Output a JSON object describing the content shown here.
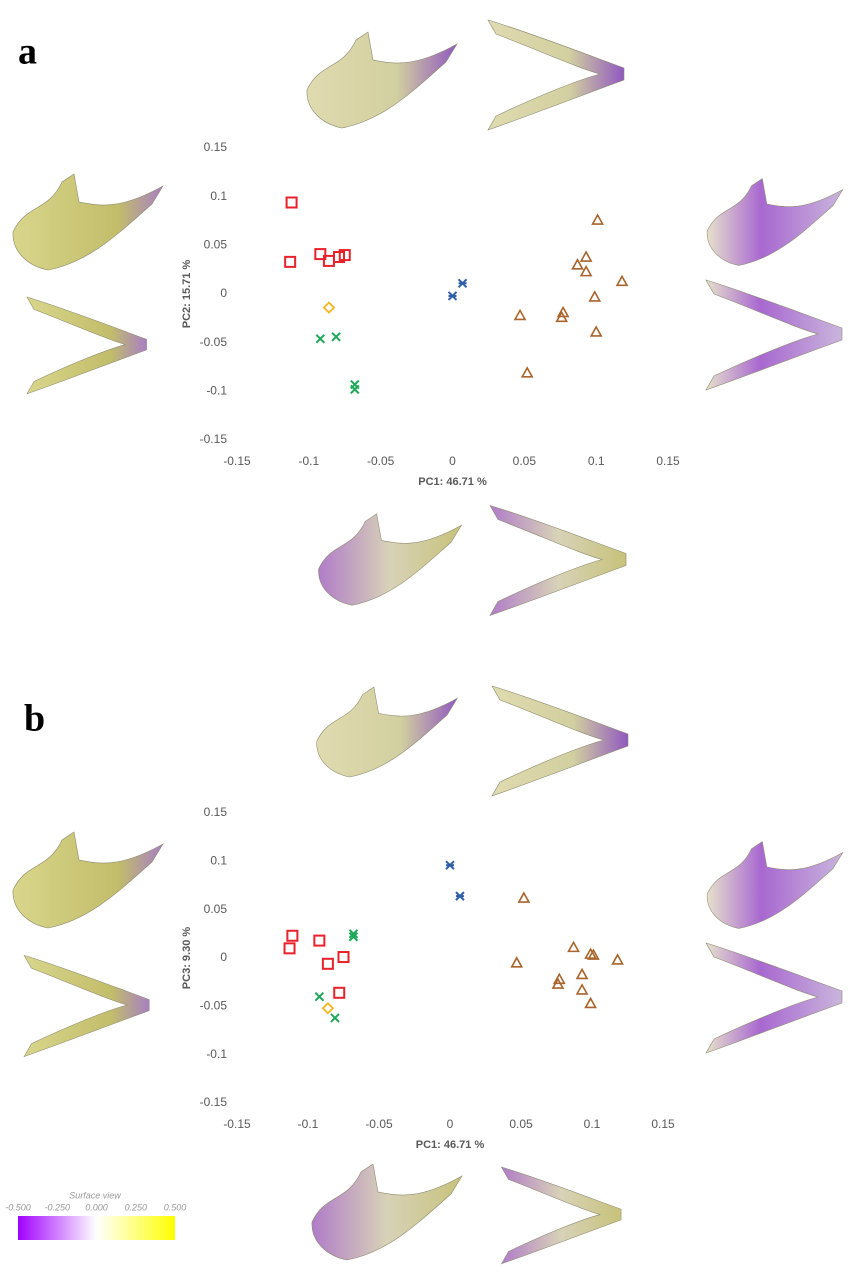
{
  "panels": [
    "a",
    "b"
  ],
  "colorbar": {
    "title": "Surface view",
    "ticks": [
      {
        "value": -0.5,
        "label": "-0.500"
      },
      {
        "value": -0.25,
        "label": "-0.250"
      },
      {
        "value": 0,
        "label": "0.000"
      },
      {
        "value": 0.25,
        "label": "0.250"
      },
      {
        "value": 0.5,
        "label": "0.500"
      }
    ]
  },
  "chart_data": [
    {
      "type": "scatter",
      "x_label": "PC1: 46.71 %",
      "y_label": "PC2: 15.71 %",
      "xlim": [
        -0.15,
        0.15
      ],
      "ylim": [
        -0.15,
        0.15
      ],
      "xticks": [
        -0.15,
        -0.1,
        -0.05,
        0,
        0.05,
        0.1,
        0.15
      ],
      "yticks": [
        -0.15,
        -0.1,
        -0.05,
        0,
        0.05,
        0.1,
        0.15
      ],
      "grid": false,
      "series": [
        {
          "color": "#e8212a",
          "marker": "square",
          "x": [
            -0.112,
            -0.113,
            -0.092,
            -0.086,
            -0.079,
            -0.075
          ],
          "values": [
            0.094,
            0.033,
            0.041,
            0.034,
            0.038,
            0.04
          ]
        },
        {
          "color": "#f5b520",
          "marker": "diamond",
          "x": [
            -0.086
          ],
          "values": [
            -0.014
          ]
        },
        {
          "color": "#1ea85a",
          "marker": "x",
          "x": [
            -0.092,
            -0.081,
            -0.068,
            -0.068
          ],
          "values": [
            -0.046,
            -0.044,
            -0.093,
            -0.098
          ]
        },
        {
          "color": "#2f5ea8",
          "marker": "star",
          "x": [
            0.0,
            0.007
          ],
          "values": [
            -0.002,
            0.011
          ]
        },
        {
          "color": "#a8642a",
          "marker": "triangle",
          "x": [
            0.101,
            0.093,
            0.087,
            0.093,
            0.118,
            0.099,
            0.047,
            0.077,
            0.076,
            0.1,
            0.052
          ],
          "values": [
            0.076,
            0.038,
            0.03,
            0.023,
            0.013,
            -0.003,
            -0.022,
            -0.019,
            -0.024,
            -0.039,
            -0.081
          ]
        }
      ]
    },
    {
      "type": "scatter",
      "x_label": "PC1: 46.71 %",
      "y_label": "PC3: 9.30 %",
      "xlim": [
        -0.15,
        0.15
      ],
      "ylim": [
        -0.15,
        0.15
      ],
      "xticks": [
        -0.15,
        -0.1,
        -0.05,
        0,
        0.05,
        0.1,
        0.15
      ],
      "yticks": [
        -0.15,
        -0.1,
        -0.05,
        0,
        0.05,
        0.1,
        0.15
      ],
      "grid": false,
      "series": [
        {
          "color": "#e8212a",
          "marker": "square",
          "x": [
            -0.111,
            -0.113,
            -0.092,
            -0.086,
            -0.075,
            -0.078
          ],
          "values": [
            0.023,
            0.01,
            0.018,
            -0.006,
            0.001,
            -0.036
          ]
        },
        {
          "color": "#f5b520",
          "marker": "diamond",
          "x": [
            -0.086
          ],
          "values": [
            -0.052
          ]
        },
        {
          "color": "#1ea85a",
          "marker": "x",
          "x": [
            -0.092,
            -0.081,
            -0.068,
            -0.068
          ],
          "values": [
            -0.04,
            -0.062,
            0.025,
            0.022
          ]
        },
        {
          "color": "#2f5ea8",
          "marker": "star",
          "x": [
            0.0,
            0.007
          ],
          "values": [
            0.096,
            0.064
          ]
        },
        {
          "color": "#a8642a",
          "marker": "triangle",
          "x": [
            0.052,
            0.047,
            0.087,
            0.099,
            0.101,
            0.118,
            0.093,
            0.077,
            0.076,
            0.093,
            0.099
          ],
          "values": [
            0.062,
            -0.005,
            0.011,
            0.004,
            0.003,
            -0.002,
            -0.017,
            -0.022,
            -0.027,
            -0.033,
            -0.047
          ]
        }
      ]
    }
  ]
}
